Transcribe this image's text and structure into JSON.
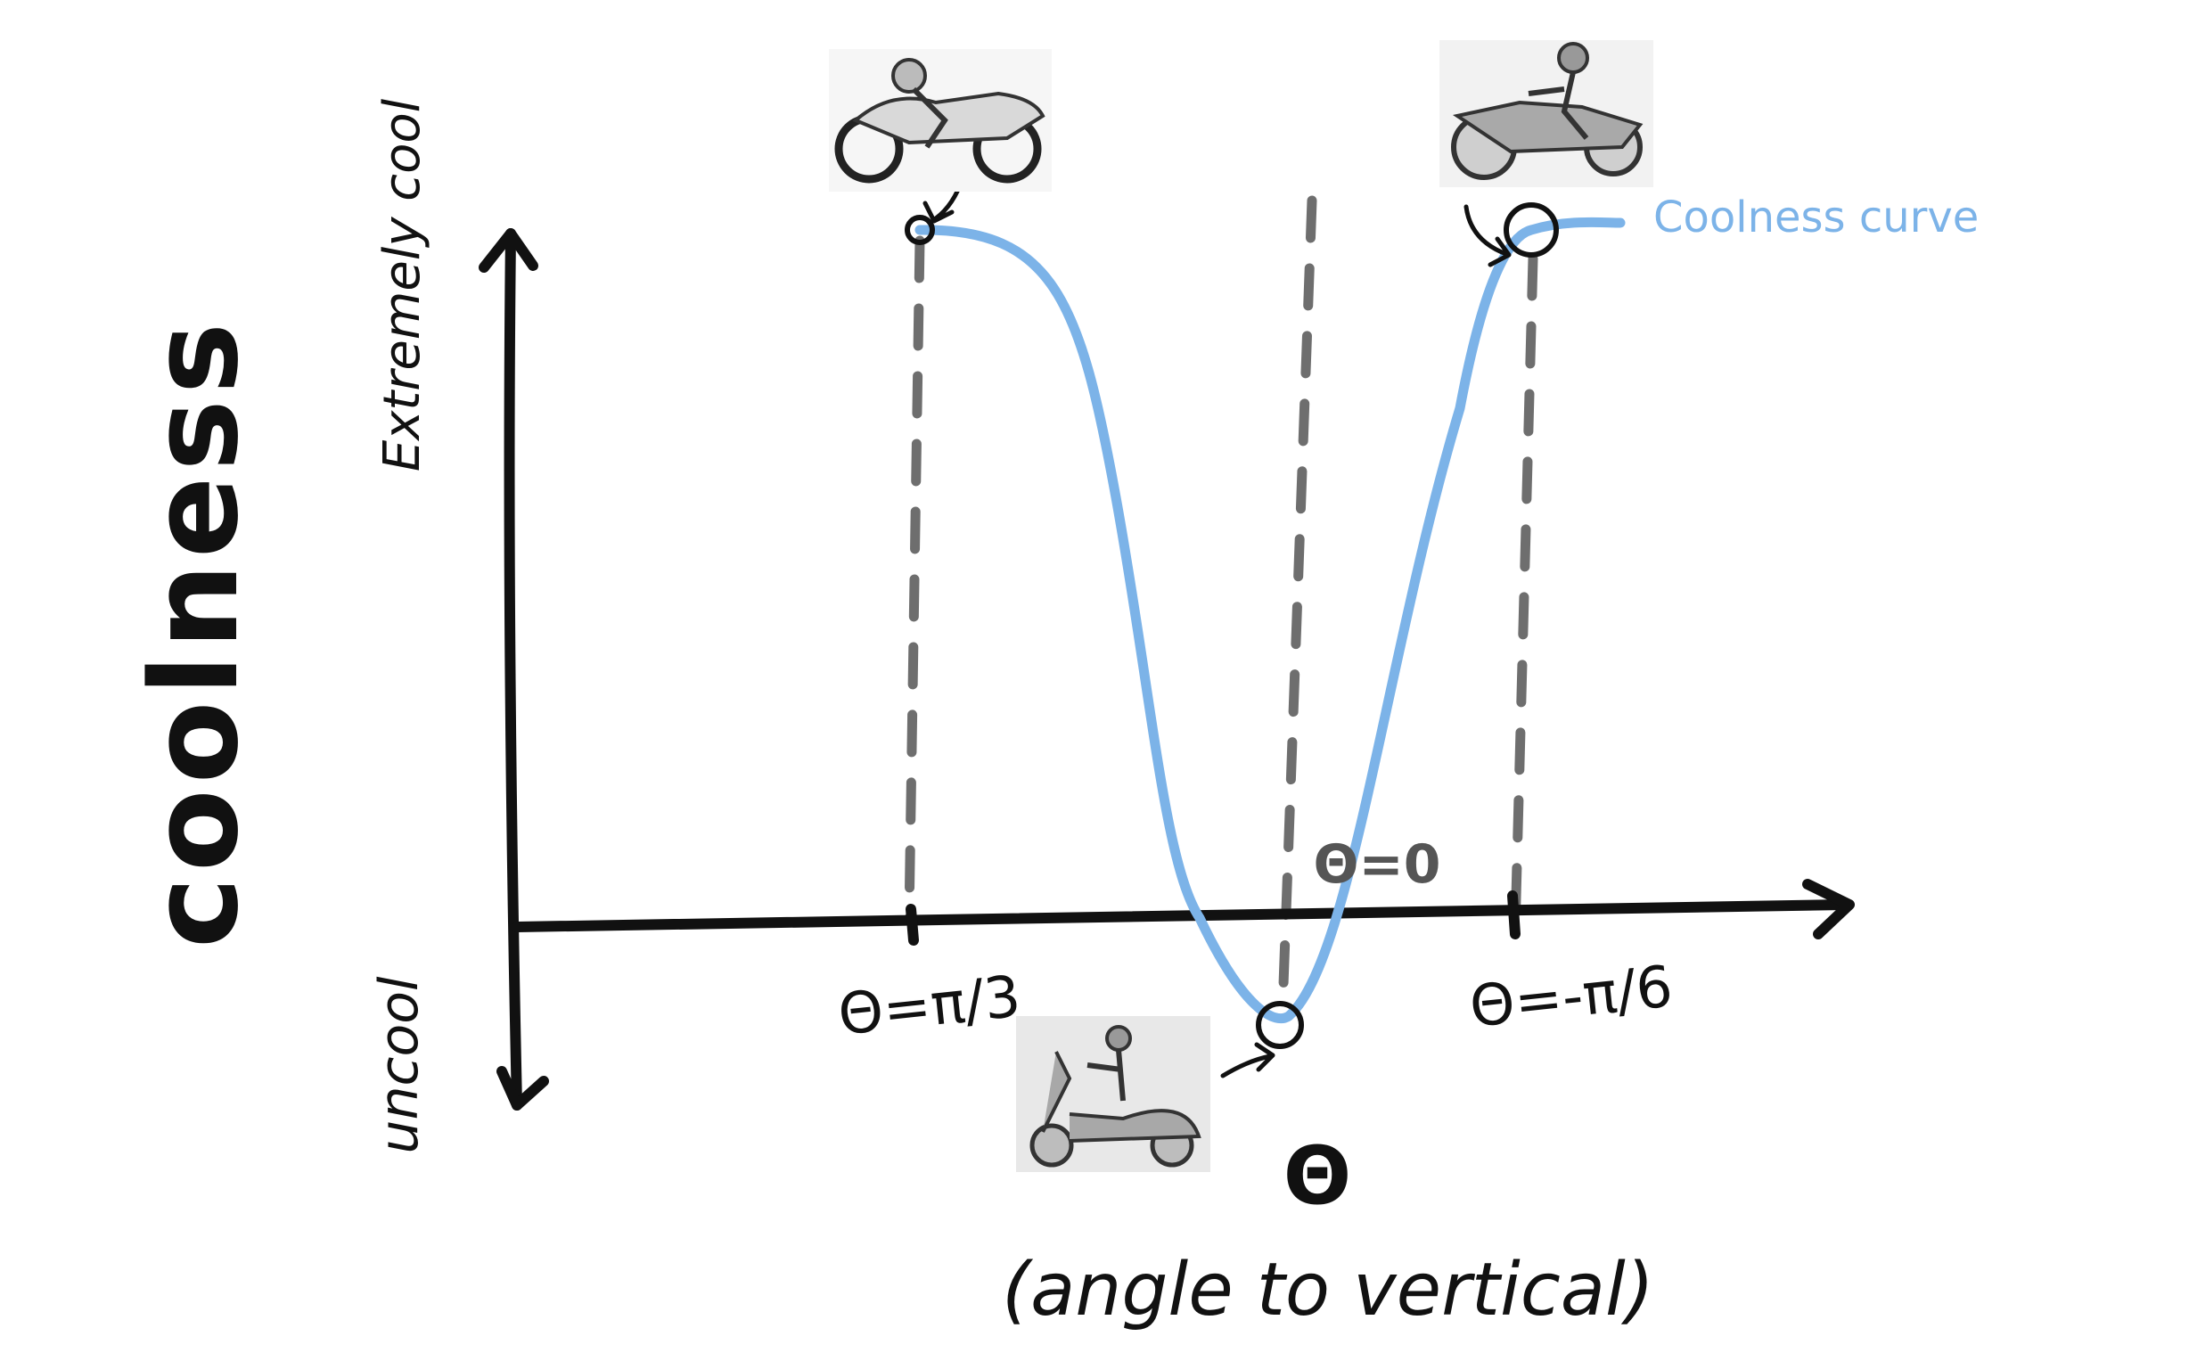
{
  "chart_data": {
    "type": "line",
    "xlabel": "Θ",
    "xlabel_note": "(angle to vertical)",
    "ylabel": "coolness",
    "y_top_label": "Extremely cool",
    "y_bottom_label": "uncool",
    "series": [
      {
        "name": "Coolness curve",
        "color": "#7cb3e8",
        "points": [
          {
            "theta": "π/3",
            "level": "extremely cool"
          },
          {
            "theta": "0",
            "level": "uncool"
          },
          {
            "theta": "-π/6",
            "level": "extremely cool"
          }
        ]
      }
    ],
    "annotations": [
      {
        "label": "Θ=π/3",
        "icon": "sport-motorcycle-icon"
      },
      {
        "label": "Θ=0",
        "icon": "scooter-icon"
      },
      {
        "label": "Θ=-π/6",
        "icon": "cruiser-motorcycle-icon"
      }
    ]
  }
}
